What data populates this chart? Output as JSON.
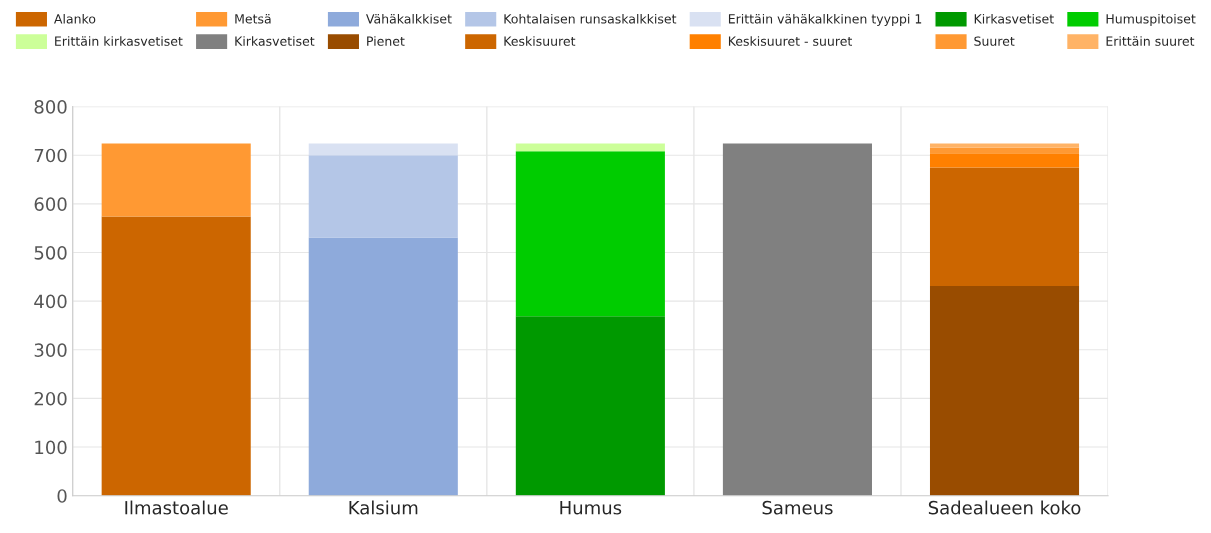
{
  "chart_data": {
    "type": "bar",
    "stacked": true,
    "categories": [
      "Ilmastoalue",
      "Kalsium",
      "Humus",
      "Sameus",
      "Sadealueen koko"
    ],
    "ylim": [
      0,
      800
    ],
    "yticks": [
      0,
      100,
      200,
      300,
      400,
      500,
      600,
      700,
      800
    ],
    "grid": true,
    "legend": "top",
    "series": [
      {
        "name": "Alanko",
        "color": "#cc6600",
        "values": [
          574,
          null,
          null,
          null,
          null
        ]
      },
      {
        "name": "Metsä",
        "color": "#ff9933",
        "values": [
          150,
          null,
          null,
          null,
          null
        ]
      },
      {
        "name": "Vähäkalkkiset",
        "color": "#8eaadb",
        "values": [
          null,
          531,
          null,
          null,
          null
        ]
      },
      {
        "name": "Kohtalaisen runsaskalkkiset",
        "color": "#b4c6e7",
        "values": [
          null,
          169,
          null,
          null,
          null
        ]
      },
      {
        "name": "Erittäin vähäkalkkinen tyyppi 1",
        "color": "#d9e1f2",
        "values": [
          null,
          24,
          null,
          null,
          null
        ]
      },
      {
        "name": "Kirkasvetiset",
        "color": "#009900",
        "values": [
          null,
          null,
          369,
          null,
          null
        ]
      },
      {
        "name": "Humuspitoiset",
        "color": "#00cc00",
        "values": [
          null,
          null,
          339,
          null,
          null
        ]
      },
      {
        "name": "Erittäin kirkasvetiset",
        "color": "#ccff99",
        "values": [
          null,
          null,
          16,
          null,
          null
        ]
      },
      {
        "name": "Kirkasvetiset",
        "color": "#808080",
        "values": [
          null,
          null,
          null,
          724,
          null
        ]
      },
      {
        "name": "Pienet",
        "color": "#994c00",
        "values": [
          null,
          null,
          null,
          null,
          431
        ]
      },
      {
        "name": "Keskisuuret",
        "color": "#cc6600",
        "values": [
          null,
          null,
          null,
          null,
          244
        ]
      },
      {
        "name": "Keskisuuret - suuret",
        "color": "#ff8000",
        "values": [
          null,
          null,
          null,
          null,
          29
        ]
      },
      {
        "name": "Suuret",
        "color": "#ff9933",
        "values": [
          null,
          null,
          null,
          null,
          12
        ]
      },
      {
        "name": "Erittäin suuret",
        "color": "#ffb366",
        "values": [
          null,
          null,
          null,
          null,
          8
        ]
      }
    ]
  }
}
